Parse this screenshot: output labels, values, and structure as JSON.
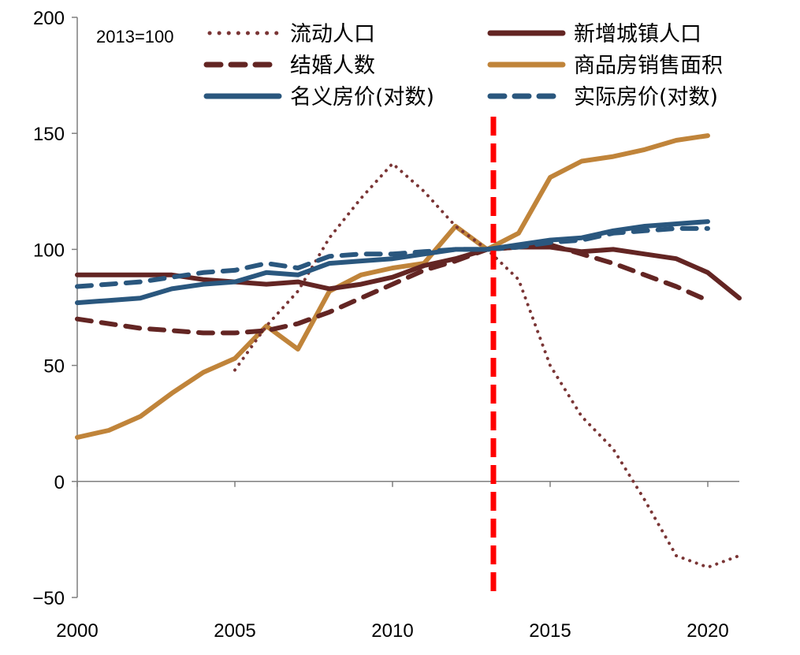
{
  "chart_data": {
    "type": "line",
    "title": "",
    "xlabel": "",
    "ylabel": "",
    "annotation": "2013=100",
    "xlim": [
      2000,
      2021
    ],
    "ylim": [
      -50,
      200
    ],
    "xticks": [
      "2000",
      "2005",
      "2010",
      "2015",
      "2020"
    ],
    "yticks": [
      "200",
      "150",
      "100",
      "50",
      "0",
      "-50"
    ],
    "grid": false,
    "legend_placement": "top",
    "reference_line": {
      "x": 2013.2,
      "color": "#FF0000",
      "style": "dashed"
    },
    "series": [
      {
        "name": "流动人口",
        "color": "#7A3535",
        "style": "dotted",
        "x": [
          2005,
          2006,
          2007,
          2008,
          2009,
          2010,
          2011,
          2012,
          2013,
          2014,
          2015,
          2016,
          2017,
          2018,
          2019,
          2020,
          2021
        ],
        "values": [
          48,
          67,
          82,
          105,
          122,
          137,
          125,
          110,
          100,
          87,
          50,
          28,
          14,
          -8,
          -32,
          -37,
          -32
        ]
      },
      {
        "name": "新增城镇人口",
        "color": "#632523",
        "style": "solid",
        "x": [
          2000,
          2001,
          2002,
          2003,
          2004,
          2005,
          2006,
          2007,
          2008,
          2009,
          2010,
          2011,
          2012,
          2013,
          2014,
          2015,
          2016,
          2017,
          2018,
          2019,
          2020,
          2021
        ],
        "values": [
          89,
          89,
          89,
          89,
          87,
          86,
          85,
          86,
          83,
          85,
          88,
          93,
          96,
          100,
          101,
          101,
          99,
          100,
          98,
          96,
          90,
          79
        ]
      },
      {
        "name": "结婚人数",
        "color": "#632523",
        "style": "dashed",
        "x": [
          2000,
          2001,
          2002,
          2003,
          2004,
          2005,
          2006,
          2007,
          2008,
          2009,
          2010,
          2011,
          2012,
          2013,
          2014,
          2015,
          2016,
          2017,
          2018,
          2019,
          2020
        ],
        "values": [
          70,
          68,
          66,
          65,
          64,
          64,
          65,
          68,
          73,
          79,
          85,
          91,
          95,
          100,
          101,
          102,
          98,
          94,
          89,
          84,
          78
        ]
      },
      {
        "name": "商品房销售面积",
        "color": "#C0843A",
        "style": "solid",
        "x": [
          2000,
          2001,
          2002,
          2003,
          2004,
          2005,
          2006,
          2007,
          2008,
          2009,
          2010,
          2011,
          2012,
          2013,
          2014,
          2015,
          2016,
          2017,
          2018,
          2019,
          2020
        ],
        "values": [
          19,
          22,
          28,
          38,
          47,
          53,
          67,
          57,
          82,
          89,
          92,
          94,
          110,
          100,
          107,
          131,
          138,
          140,
          143,
          147,
          149
        ]
      },
      {
        "name": "名义房价(对数)",
        "color": "#2A577E",
        "style": "solid",
        "x": [
          2000,
          2001,
          2002,
          2003,
          2004,
          2005,
          2006,
          2007,
          2008,
          2009,
          2010,
          2011,
          2012,
          2013,
          2014,
          2015,
          2016,
          2017,
          2018,
          2019,
          2020
        ],
        "values": [
          77,
          78,
          79,
          83,
          85,
          86,
          90,
          89,
          94,
          95,
          96,
          98,
          100,
          100,
          102,
          104,
          105,
          108,
          110,
          111,
          112
        ]
      },
      {
        "name": "实际房价(对数)",
        "color": "#2A577E",
        "style": "dashed",
        "x": [
          2000,
          2001,
          2002,
          2003,
          2004,
          2005,
          2006,
          2007,
          2008,
          2009,
          2010,
          2011,
          2012,
          2013,
          2014,
          2015,
          2016,
          2017,
          2018,
          2019,
          2020
        ],
        "values": [
          84,
          85,
          86,
          88,
          90,
          91,
          94,
          92,
          97,
          98,
          98,
          99,
          100,
          100,
          101,
          103,
          104,
          107,
          108,
          109,
          109
        ]
      }
    ]
  }
}
